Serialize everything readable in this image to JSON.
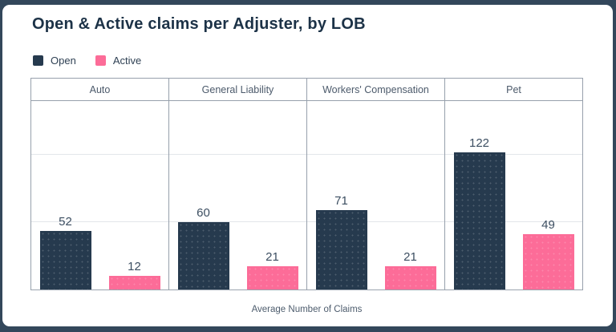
{
  "card": {
    "title": "Open & Active claims per Adjuster, by LOB"
  },
  "legend": [
    {
      "label": "Open",
      "color": "#263a4e"
    },
    {
      "label": "Active",
      "color": "#fc6c98"
    }
  ],
  "chart_data": {
    "type": "bar",
    "title": "Open & Active claims per Adjuster, by LOB",
    "categories": [
      "Auto",
      "General Liability",
      "Workers' Compensation",
      "Pet"
    ],
    "series": [
      {
        "name": "Open",
        "color": "#263a4e",
        "values": [
          52,
          60,
          71,
          122
        ]
      },
      {
        "name": "Active",
        "color": "#fc6c98",
        "values": [
          12,
          21,
          21,
          49
        ]
      }
    ],
    "xlabel": "Average Number of Claims",
    "ylabel": "",
    "ylim": [
      0,
      169
    ],
    "grid_values": [
      60,
      120
    ],
    "grid": "horizontal-faint",
    "legend_position": "top-left",
    "value_labels": true
  },
  "colors": {
    "frame": "#33475b",
    "card_background": "#ffffff",
    "title_text": "#1c3247",
    "border": "#97a0ac",
    "gridline": "#e3e6ea",
    "header_text": "#4c5a6b",
    "value_text": "#3c4e61",
    "axis_label_text": "#4d5c6d"
  }
}
